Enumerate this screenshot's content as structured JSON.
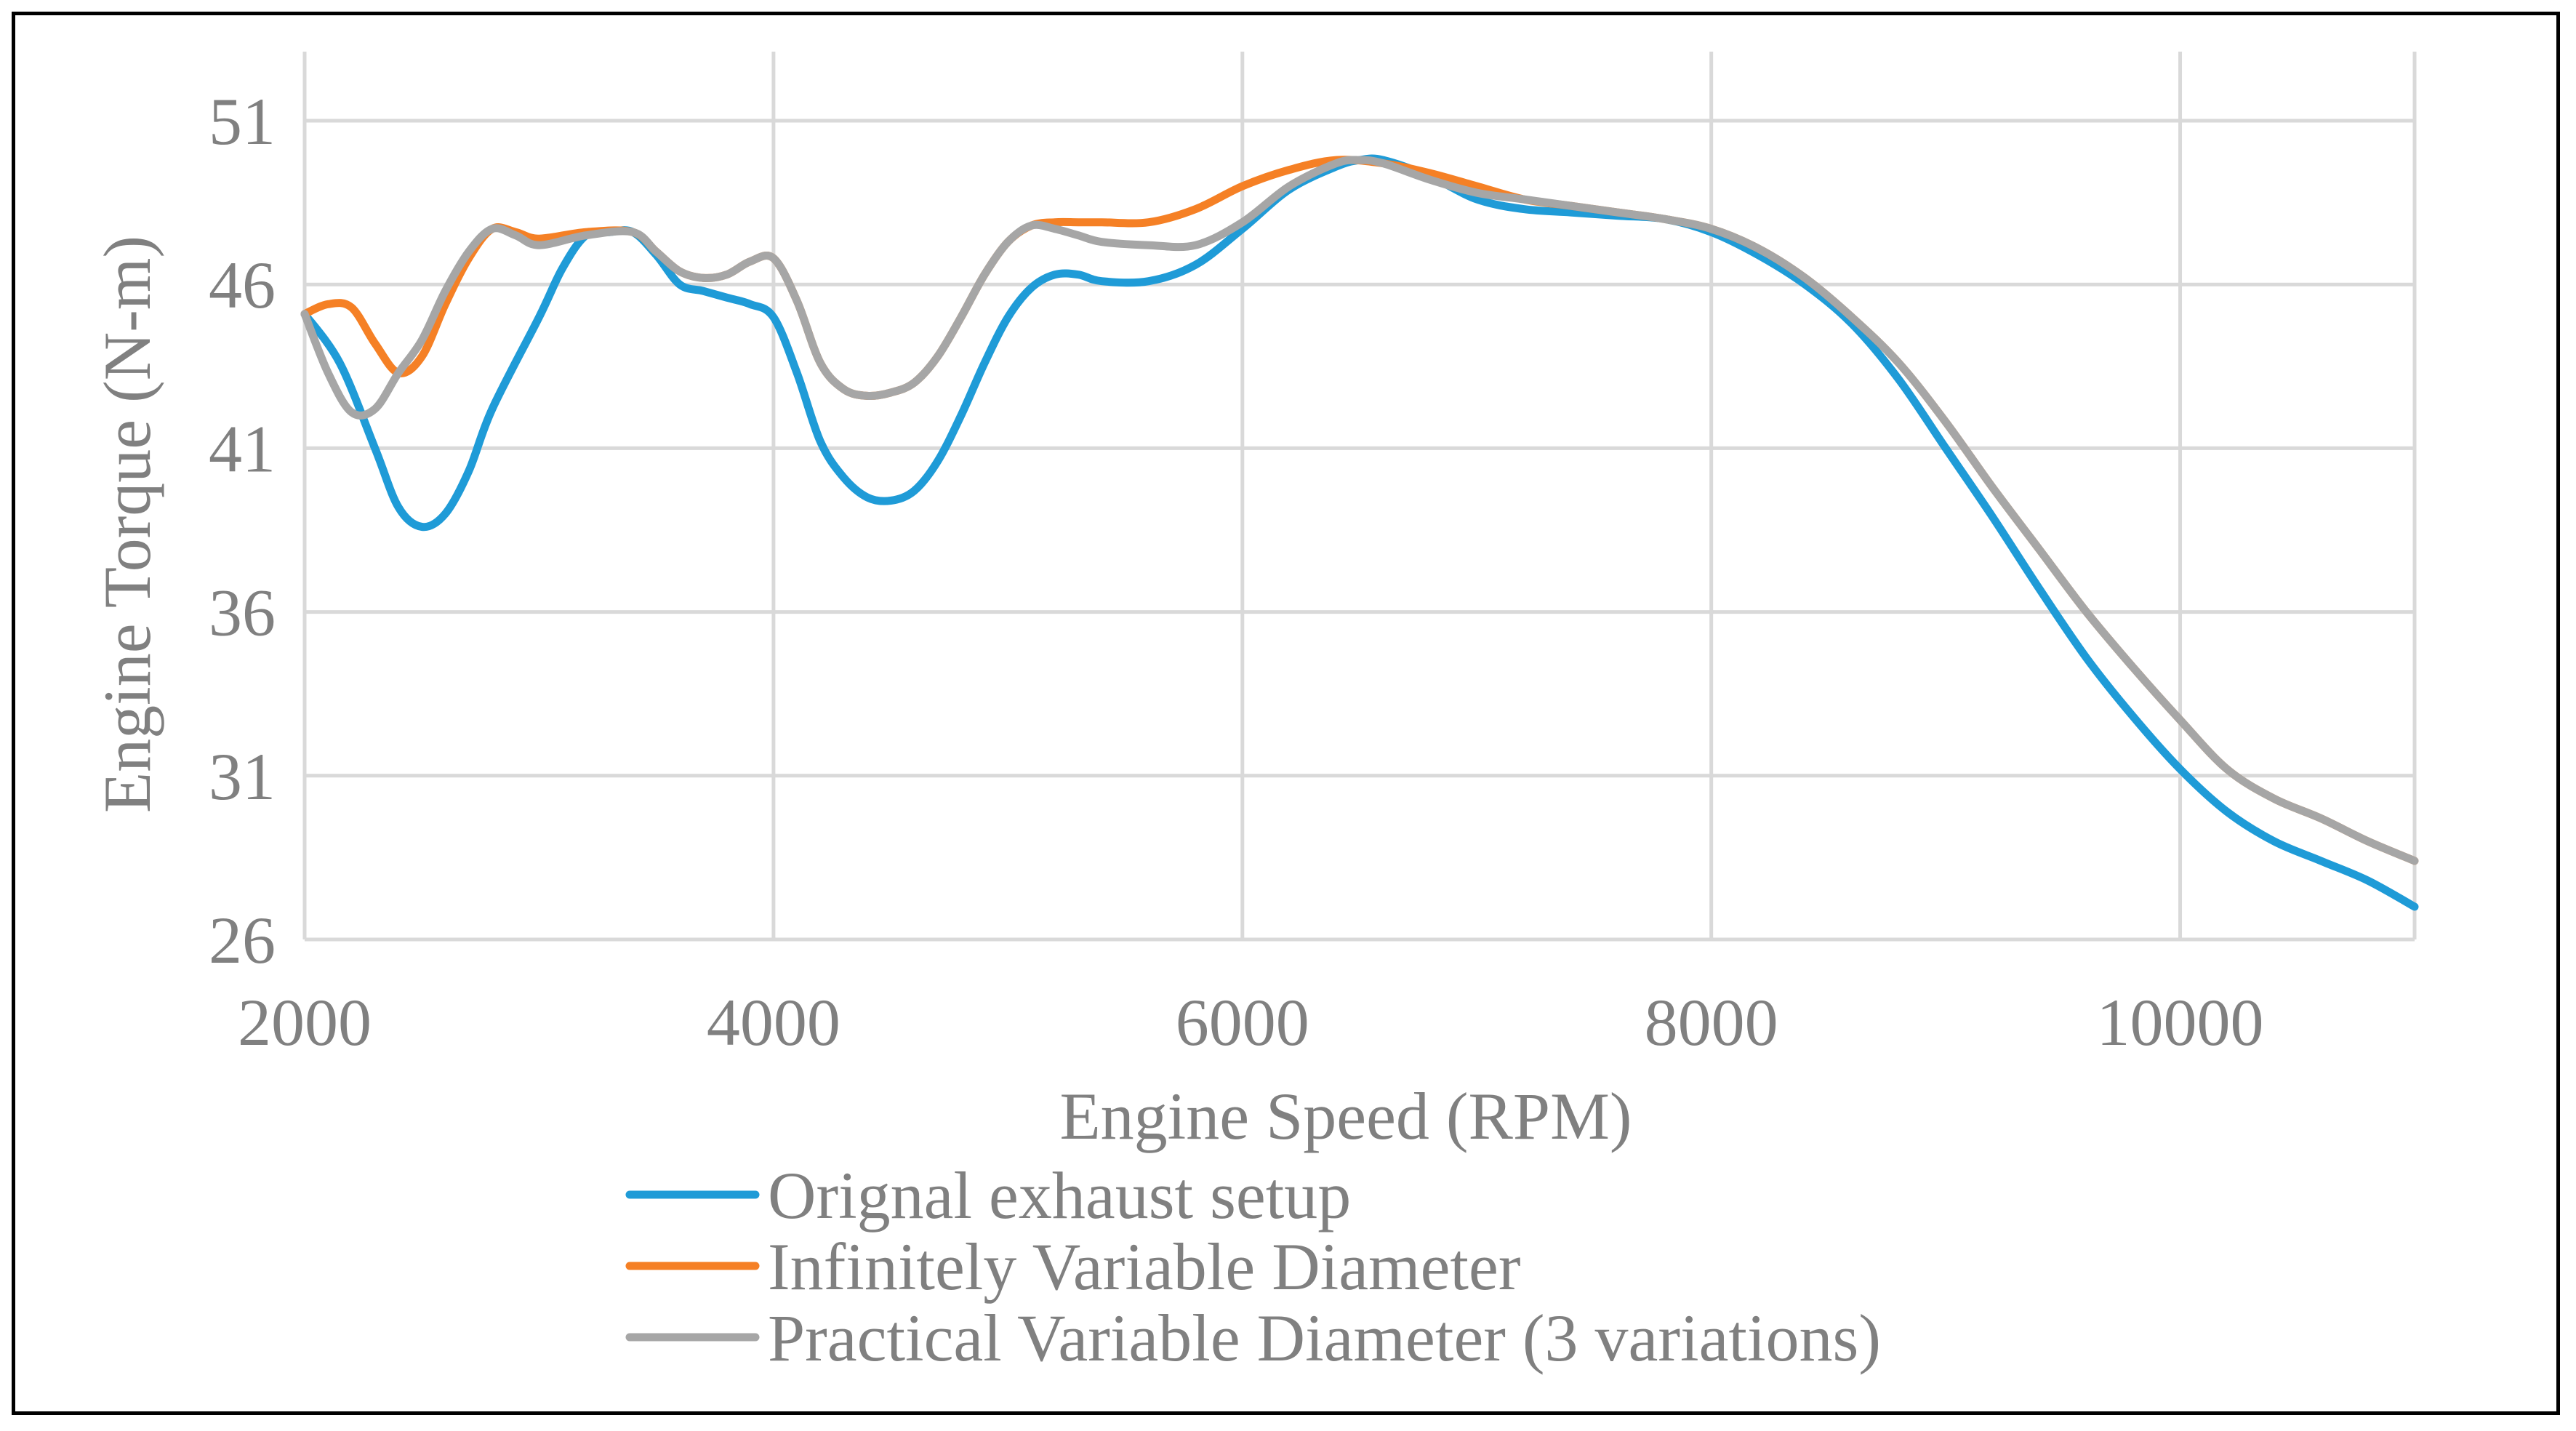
{
  "chart_data": {
    "type": "line",
    "title": "",
    "xlabel": "Engine Speed (RPM)",
    "ylabel": "Engine Torque (N-m)",
    "xlim": [
      2000,
      11000
    ],
    "ylim": [
      26,
      52
    ],
    "x_ticks": [
      2000,
      4000,
      6000,
      8000,
      10000
    ],
    "y_ticks": [
      26,
      31,
      36,
      41,
      46,
      51
    ],
    "grid": true,
    "legend_position": "bottom",
    "series": [
      {
        "name": "Orignal exhaust setup",
        "color": "#1f9bd7",
        "points": [
          [
            2000,
            45.1
          ],
          [
            2150,
            43.6
          ],
          [
            2300,
            41.0
          ],
          [
            2400,
            39.2
          ],
          [
            2500,
            38.6
          ],
          [
            2600,
            39.0
          ],
          [
            2700,
            40.3
          ],
          [
            2800,
            42.2
          ],
          [
            3000,
            45.0
          ],
          [
            3100,
            46.5
          ],
          [
            3200,
            47.5
          ],
          [
            3300,
            47.6
          ],
          [
            3400,
            47.6
          ],
          [
            3500,
            46.9
          ],
          [
            3600,
            46.0
          ],
          [
            3700,
            45.8
          ],
          [
            3800,
            45.6
          ],
          [
            3900,
            45.4
          ],
          [
            4000,
            45.0
          ],
          [
            4100,
            43.3
          ],
          [
            4200,
            41.2
          ],
          [
            4300,
            40.1
          ],
          [
            4400,
            39.5
          ],
          [
            4500,
            39.4
          ],
          [
            4600,
            39.7
          ],
          [
            4700,
            40.6
          ],
          [
            4800,
            42.0
          ],
          [
            4900,
            43.6
          ],
          [
            5000,
            45.0
          ],
          [
            5100,
            45.9
          ],
          [
            5200,
            46.3
          ],
          [
            5300,
            46.3
          ],
          [
            5400,
            46.1
          ],
          [
            5600,
            46.1
          ],
          [
            5800,
            46.6
          ],
          [
            6000,
            47.7
          ],
          [
            6200,
            48.9
          ],
          [
            6400,
            49.6
          ],
          [
            6500,
            49.8
          ],
          [
            6600,
            49.8
          ],
          [
            6800,
            49.3
          ],
          [
            7000,
            48.6
          ],
          [
            7200,
            48.3
          ],
          [
            7400,
            48.2
          ],
          [
            7600,
            48.1
          ],
          [
            7800,
            48.0
          ],
          [
            8000,
            47.6
          ],
          [
            8200,
            46.9
          ],
          [
            8400,
            46.0
          ],
          [
            8600,
            44.8
          ],
          [
            8800,
            43.1
          ],
          [
            9000,
            41.0
          ],
          [
            9200,
            38.9
          ],
          [
            9400,
            36.7
          ],
          [
            9600,
            34.6
          ],
          [
            9800,
            32.8
          ],
          [
            10000,
            31.2
          ],
          [
            10200,
            29.9
          ],
          [
            10400,
            29.0
          ],
          [
            10600,
            28.4
          ],
          [
            10800,
            27.8
          ],
          [
            11000,
            27.0
          ]
        ]
      },
      {
        "name": "Infinitely Variable Diameter",
        "color": "#f58025",
        "points": [
          [
            2000,
            45.1
          ],
          [
            2100,
            45.4
          ],
          [
            2200,
            45.3
          ],
          [
            2300,
            44.2
          ],
          [
            2400,
            43.3
          ],
          [
            2500,
            43.8
          ],
          [
            2600,
            45.4
          ],
          [
            2700,
            46.8
          ],
          [
            2800,
            47.7
          ],
          [
            2900,
            47.6
          ],
          [
            3000,
            47.4
          ],
          [
            3200,
            47.6
          ],
          [
            3400,
            47.6
          ],
          [
            3500,
            47.0
          ],
          [
            3600,
            46.4
          ],
          [
            3700,
            46.2
          ],
          [
            3800,
            46.3
          ],
          [
            3900,
            46.7
          ],
          [
            4000,
            46.8
          ],
          [
            4100,
            45.5
          ],
          [
            4200,
            43.6
          ],
          [
            4300,
            42.8
          ],
          [
            4400,
            42.6
          ],
          [
            4500,
            42.7
          ],
          [
            4600,
            43.0
          ],
          [
            4700,
            43.8
          ],
          [
            4800,
            45.0
          ],
          [
            4900,
            46.3
          ],
          [
            5000,
            47.3
          ],
          [
            5100,
            47.8
          ],
          [
            5200,
            47.9
          ],
          [
            5300,
            47.9
          ],
          [
            5400,
            47.9
          ],
          [
            5600,
            47.9
          ],
          [
            5800,
            48.3
          ],
          [
            6000,
            49.0
          ],
          [
            6200,
            49.5
          ],
          [
            6400,
            49.8
          ],
          [
            6600,
            49.7
          ],
          [
            6800,
            49.4
          ],
          [
            7000,
            49.0
          ],
          [
            7200,
            48.6
          ],
          [
            7400,
            48.4
          ],
          [
            7600,
            48.2
          ],
          [
            7800,
            48.0
          ],
          [
            8000,
            47.7
          ],
          [
            8200,
            47.1
          ],
          [
            8400,
            46.2
          ],
          [
            8600,
            45.0
          ],
          [
            8800,
            43.6
          ],
          [
            9000,
            41.8
          ],
          [
            9200,
            39.8
          ],
          [
            9400,
            37.9
          ],
          [
            9600,
            36.0
          ],
          [
            9800,
            34.3
          ],
          [
            10000,
            32.7
          ],
          [
            10200,
            31.2
          ],
          [
            10400,
            30.3
          ],
          [
            10600,
            29.7
          ],
          [
            10800,
            29.0
          ],
          [
            11000,
            28.4
          ]
        ]
      },
      {
        "name": "Practical Variable Diameter (3 variations)",
        "color": "#a6a6a6",
        "points": [
          [
            2000,
            45.1
          ],
          [
            2100,
            43.3
          ],
          [
            2200,
            42.1
          ],
          [
            2300,
            42.2
          ],
          [
            2400,
            43.3
          ],
          [
            2500,
            44.3
          ],
          [
            2600,
            45.8
          ],
          [
            2700,
            47.0
          ],
          [
            2800,
            47.7
          ],
          [
            2900,
            47.5
          ],
          [
            3000,
            47.2
          ],
          [
            3200,
            47.5
          ],
          [
            3400,
            47.6
          ],
          [
            3500,
            47.0
          ],
          [
            3600,
            46.4
          ],
          [
            3700,
            46.2
          ],
          [
            3800,
            46.3
          ],
          [
            3900,
            46.7
          ],
          [
            4000,
            46.8
          ],
          [
            4100,
            45.5
          ],
          [
            4200,
            43.6
          ],
          [
            4300,
            42.8
          ],
          [
            4400,
            42.6
          ],
          [
            4500,
            42.7
          ],
          [
            4600,
            43.0
          ],
          [
            4700,
            43.8
          ],
          [
            4800,
            45.0
          ],
          [
            4900,
            46.3
          ],
          [
            5000,
            47.3
          ],
          [
            5100,
            47.8
          ],
          [
            5200,
            47.7
          ],
          [
            5300,
            47.5
          ],
          [
            5400,
            47.3
          ],
          [
            5600,
            47.2
          ],
          [
            5800,
            47.2
          ],
          [
            6000,
            47.9
          ],
          [
            6200,
            49.0
          ],
          [
            6400,
            49.7
          ],
          [
            6500,
            49.8
          ],
          [
            6600,
            49.7
          ],
          [
            6800,
            49.2
          ],
          [
            7000,
            48.8
          ],
          [
            7200,
            48.6
          ],
          [
            7400,
            48.4
          ],
          [
            7600,
            48.2
          ],
          [
            7800,
            48.0
          ],
          [
            8000,
            47.7
          ],
          [
            8200,
            47.1
          ],
          [
            8400,
            46.2
          ],
          [
            8600,
            45.0
          ],
          [
            8800,
            43.6
          ],
          [
            9000,
            41.8
          ],
          [
            9200,
            39.8
          ],
          [
            9400,
            37.9
          ],
          [
            9600,
            36.0
          ],
          [
            9800,
            34.3
          ],
          [
            10000,
            32.7
          ],
          [
            10200,
            31.2
          ],
          [
            10400,
            30.3
          ],
          [
            10600,
            29.7
          ],
          [
            10800,
            29.0
          ],
          [
            11000,
            28.4
          ]
        ]
      }
    ]
  }
}
